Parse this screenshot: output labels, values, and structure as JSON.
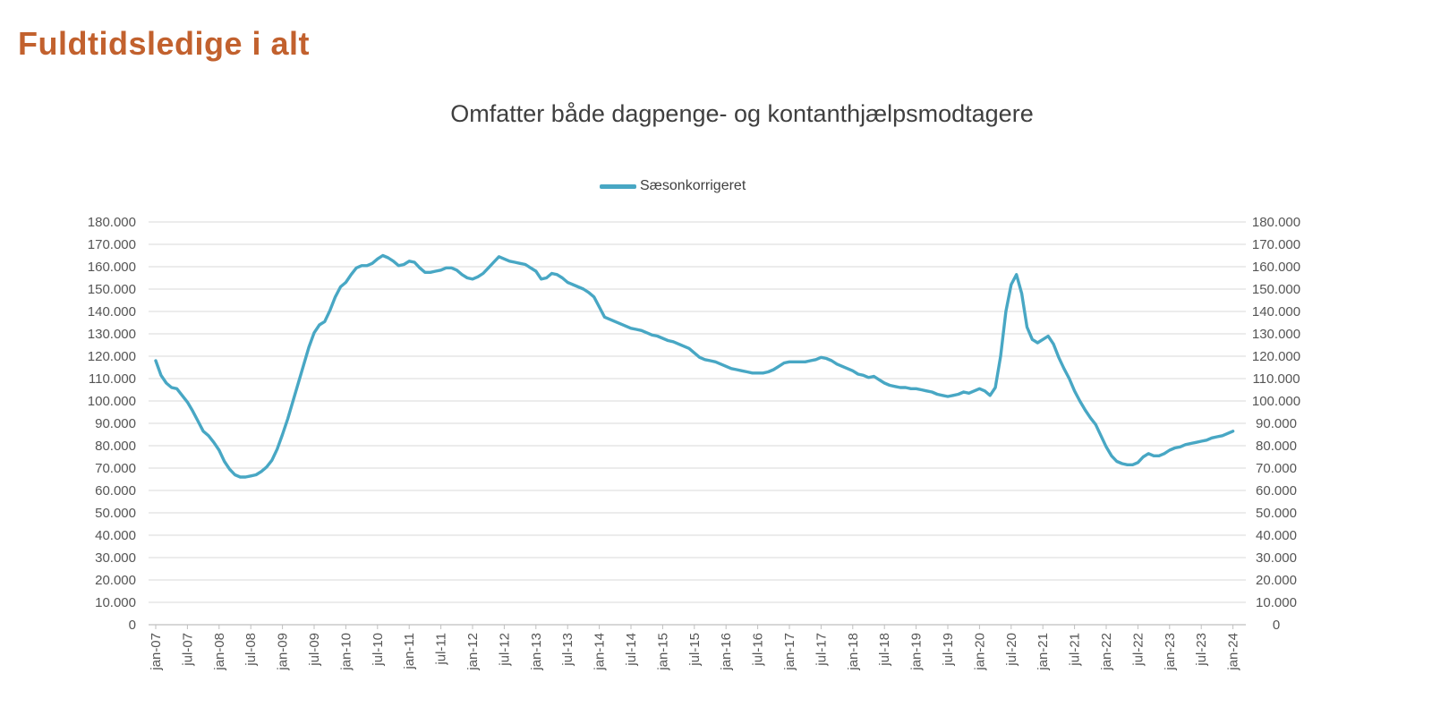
{
  "header": {
    "title": "Fuldtidsledige i alt"
  },
  "chart": {
    "title": "Omfatter både dagpenge- og kontanthjælpsmodtagere",
    "legend": "Sæsonkorrigeret"
  },
  "colors": {
    "line": "#48A7C4",
    "title": "#C2612E",
    "subtitle": "#3F3F3F",
    "axis_text": "#555555",
    "gridline": "#D9D9D9",
    "axis_line": "#BFBFBF"
  },
  "chart_data": {
    "type": "line",
    "title": "Omfatter både dagpenge- og kontanthjælpsmodtagere",
    "xlabel": "",
    "ylabel": "",
    "x_unit": "month",
    "x_range": "jan-07 to jan-24, monthly",
    "x_tick_labels": [
      "jan-07",
      "jul-07",
      "jan-08",
      "jul-08",
      "jan-09",
      "jul-09",
      "jan-10",
      "jul-10",
      "jan-11",
      "jul-11",
      "jan-12",
      "jul-12",
      "jan-13",
      "jul-13",
      "jan-14",
      "jul-14",
      "jan-15",
      "jul-15",
      "jan-16",
      "jul-16",
      "jan-17",
      "jul-17",
      "jan-18",
      "jul-18",
      "jan-19",
      "jul-19",
      "jan-20",
      "jul-20",
      "jan-21",
      "jul-21",
      "jan-22",
      "jul-22",
      "jan-23",
      "jul-23",
      "jan-24"
    ],
    "x_tick_interval_months": 6,
    "ylim": [
      0,
      180000
    ],
    "y_tick_step": 10000,
    "y_tick_labels": [
      "0",
      "10.000",
      "20.000",
      "30.000",
      "40.000",
      "50.000",
      "60.000",
      "70.000",
      "80.000",
      "90.000",
      "100.000",
      "110.000",
      "120.000",
      "130.000",
      "140.000",
      "150.000",
      "160.000",
      "170.000",
      "180.000"
    ],
    "y_axis_right": true,
    "grid": "horizontal",
    "legend_position": "top-center",
    "series": [
      {
        "name": "Sæsonkorrigeret",
        "values": [
          118000,
          111500,
          108000,
          106000,
          105500,
          102500,
          99500,
          95500,
          91000,
          86500,
          84500,
          81500,
          78000,
          73000,
          69500,
          67000,
          66000,
          66000,
          66500,
          67000,
          68500,
          70500,
          73500,
          78500,
          85000,
          92000,
          100000,
          108000,
          116000,
          124000,
          130500,
          134000,
          135500,
          140500,
          146500,
          151000,
          153000,
          156500,
          159500,
          160500,
          160500,
          161500,
          163500,
          165000,
          164000,
          162500,
          160500,
          161000,
          162500,
          162000,
          159500,
          157500,
          157500,
          158000,
          158500,
          159500,
          159500,
          158500,
          156500,
          155000,
          154500,
          155500,
          157000,
          159500,
          162000,
          164500,
          163500,
          162500,
          162000,
          161500,
          161000,
          159500,
          158000,
          154500,
          155000,
          157000,
          156500,
          155000,
          153000,
          152000,
          151000,
          150000,
          148500,
          146500,
          142000,
          137500,
          136500,
          135500,
          134500,
          133500,
          132500,
          132000,
          131500,
          130500,
          129500,
          129000,
          128000,
          127000,
          126500,
          125500,
          124500,
          123500,
          121500,
          119500,
          118500,
          118000,
          117500,
          116500,
          115500,
          114500,
          114000,
          113500,
          113000,
          112500,
          112500,
          112500,
          113000,
          114000,
          115500,
          117000,
          117500,
          117500,
          117500,
          117500,
          118000,
          118500,
          119500,
          119000,
          118000,
          116500,
          115500,
          114500,
          113500,
          112000,
          111500,
          110500,
          111000,
          109500,
          108000,
          107000,
          106500,
          106000,
          106000,
          105500,
          105500,
          105000,
          104500,
          104000,
          103000,
          102500,
          102000,
          102500,
          103000,
          104000,
          103500,
          104500,
          105500,
          104500,
          102500,
          106000,
          120000,
          140000,
          152000,
          156500,
          148000,
          133000,
          127500,
          126000,
          127500,
          129000,
          125500,
          119500,
          114500,
          110000,
          104500,
          100000,
          96000,
          92500,
          89500,
          84500,
          79500,
          75500,
          73000,
          72000,
          71500,
          71500,
          72500,
          75000,
          76500,
          75500,
          75500,
          76500,
          78000,
          79000,
          79500,
          80500,
          81000,
          81500,
          82000,
          82500,
          83500,
          84000,
          84500,
          85500,
          86500
        ]
      }
    ]
  }
}
